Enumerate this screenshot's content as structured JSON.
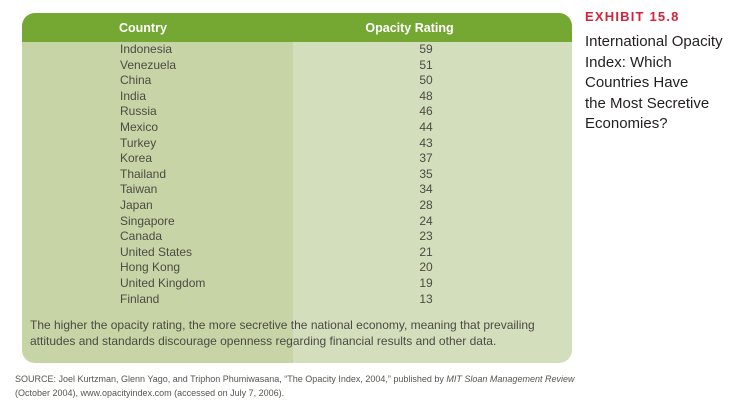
{
  "exhibit": {
    "label": "EXHIBIT 15.8",
    "title": "International Opacity\nIndex: Which\nCountries Have\nthe Most Secretive\nEconomies?"
  },
  "table": {
    "columns": [
      "Country",
      "Opacity Rating"
    ],
    "note": "The higher the opacity rating, the more secretive the national economy, meaning that prevailing attitudes and standards discourage openness regarding financial results and other data."
  },
  "chart_data": {
    "type": "table",
    "title": "International Opacity Index: Which Countries Have the Most Secretive Economies?",
    "columns": [
      "Country",
      "Opacity Rating"
    ],
    "rows": [
      [
        "Indonesia",
        59
      ],
      [
        "Venezuela",
        51
      ],
      [
        "China",
        50
      ],
      [
        "India",
        48
      ],
      [
        "Russia",
        46
      ],
      [
        "Mexico",
        44
      ],
      [
        "Turkey",
        43
      ],
      [
        "Korea",
        37
      ],
      [
        "Thailand",
        35
      ],
      [
        "Taiwan",
        34
      ],
      [
        "Japan",
        28
      ],
      [
        "Singapore",
        24
      ],
      [
        "Canada",
        23
      ],
      [
        "United States",
        21
      ],
      [
        "Hong Kong",
        20
      ],
      [
        "United Kingdom",
        19
      ],
      [
        "Finland",
        13
      ]
    ]
  },
  "source": {
    "prefix": "SOURCE: Joel Kurtzman, Glenn Yago, and Triphon Phumiwasana, “The Opacity Index, 2004,” published by ",
    "italic": "MIT Sloan Management Review",
    "suffix": " (October 2004), www.opacityindex.com (accessed on July 7, 2006)."
  },
  "colors": {
    "header_green": "#75A733",
    "column_left_green": "#C7D4A6",
    "column_right_green": "#D3DEBC",
    "exhibit_red": "#D2233C",
    "body_text": "#4B4B43"
  }
}
